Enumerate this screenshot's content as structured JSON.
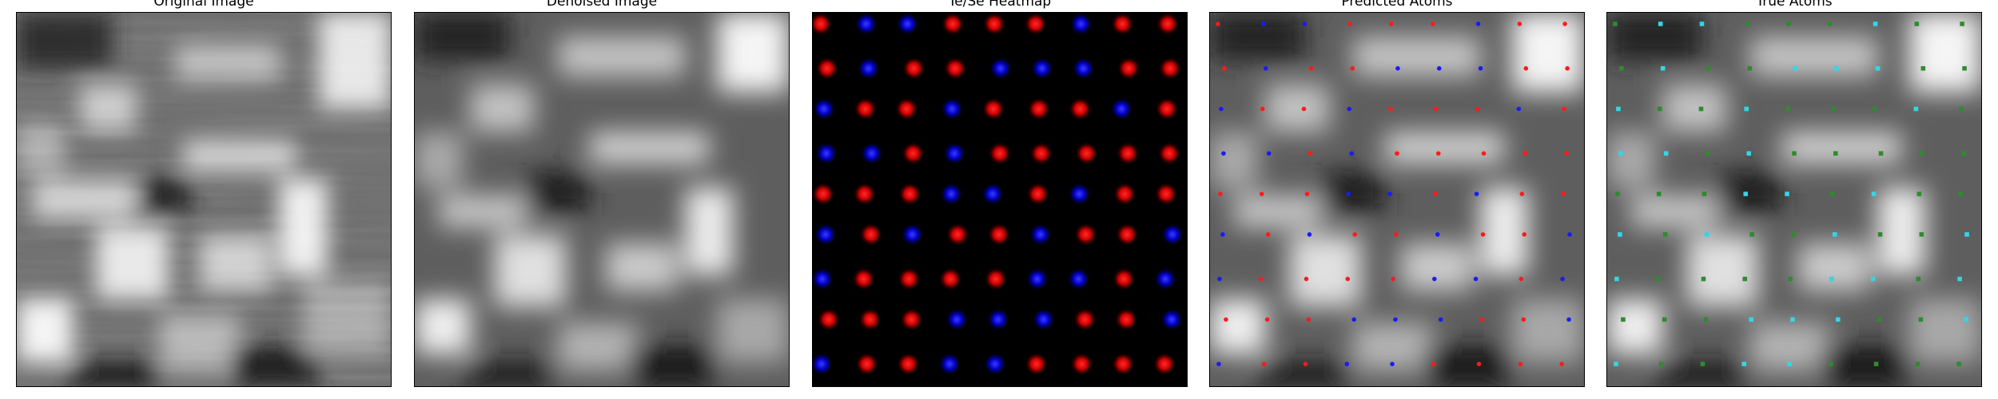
{
  "figure": {
    "panels": [
      {
        "id": "original",
        "title": "Original Image"
      },
      {
        "id": "denoised",
        "title": "Denoised Image"
      },
      {
        "id": "heatmap",
        "title": "Te/Se Heatmap"
      },
      {
        "id": "predicted",
        "title": "Predicted Atoms"
      },
      {
        "id": "true",
        "title": "True Atoms"
      }
    ],
    "colors": {
      "te_heat": "#ff0000",
      "se_heat": "#0000ff",
      "pred_te": "#ff1a1a",
      "pred_se": "#1a1aff",
      "true_te": "#2e8b2e",
      "true_se": "#33d6e6"
    },
    "colormap": "gray"
  }
}
